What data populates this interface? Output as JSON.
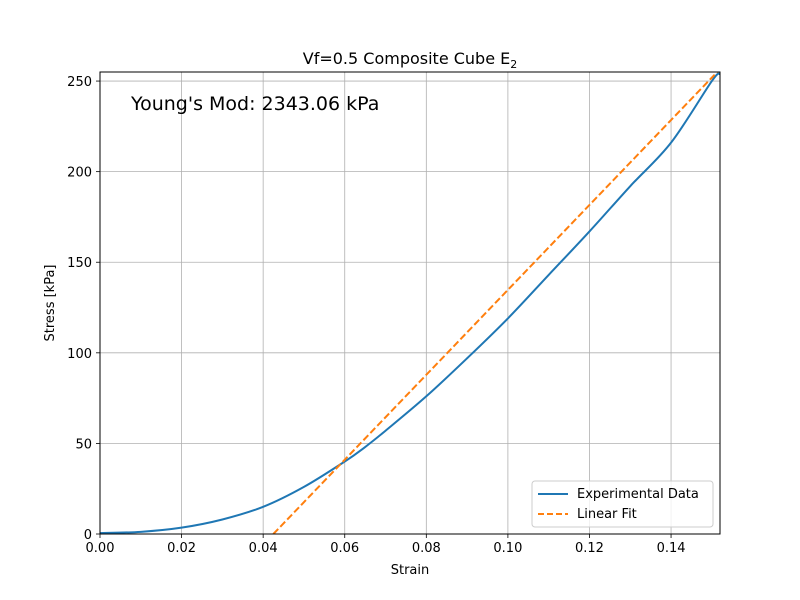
{
  "chart_data": {
    "type": "line",
    "title": "Vf=0.5 Composite Cube E",
    "title_subscript": "2",
    "xlabel": "Strain",
    "ylabel": "Stress [kPa]",
    "xlim": [
      0.0,
      0.152
    ],
    "ylim": [
      0,
      255
    ],
    "xticks": [
      0.0,
      0.02,
      0.04,
      0.06,
      0.08,
      0.1,
      0.12,
      0.14
    ],
    "xtick_labels": [
      "0.00",
      "0.02",
      "0.04",
      "0.06",
      "0.08",
      "0.10",
      "0.12",
      "0.14"
    ],
    "yticks": [
      0,
      50,
      100,
      150,
      200,
      250
    ],
    "ytick_labels": [
      "0",
      "50",
      "100",
      "150",
      "200",
      "250"
    ],
    "grid": true,
    "legend_position": "lower-right",
    "annotation": "Young's Mod: 2343.06 kPa",
    "series": [
      {
        "name": "Experimental Data",
        "color": "#1f77b4",
        "style": "solid",
        "x": [
          0.0,
          0.01,
          0.02,
          0.03,
          0.04,
          0.05,
          0.06,
          0.065,
          0.07,
          0.08,
          0.09,
          0.1,
          0.11,
          0.12,
          0.13,
          0.14,
          0.15,
          0.152
        ],
        "y": [
          0.5,
          1.2,
          3.5,
          8.0,
          15.0,
          26.0,
          40.0,
          48.0,
          57.0,
          76.0,
          97.0,
          119.0,
          143.0,
          167.0,
          192.0,
          216.0,
          250.0,
          254.0
        ]
      },
      {
        "name": "Linear Fit",
        "color": "#ff7f0e",
        "style": "dashed",
        "x": [
          0.0425,
          0.152
        ],
        "y": [
          0.0,
          256.6
        ]
      }
    ]
  }
}
